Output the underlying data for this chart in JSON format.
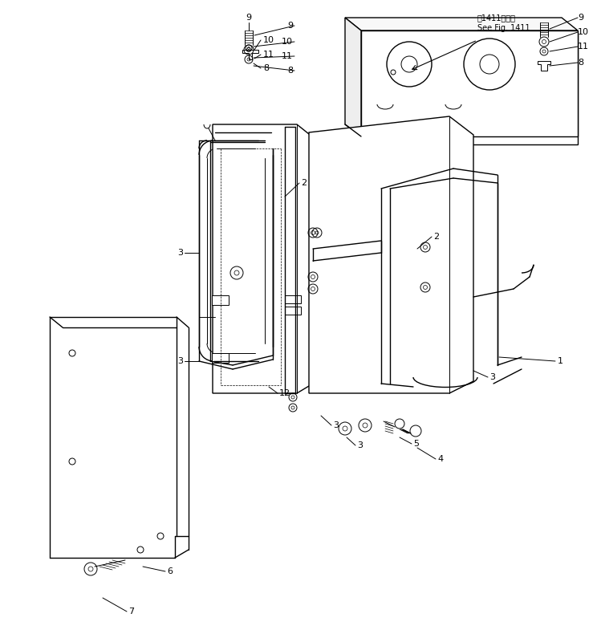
{
  "background_color": "#ffffff",
  "line_color": "#000000",
  "note_japanese": "第1411図参照",
  "note_english": "See Fig. 1411",
  "figsize": [
    7.44,
    7.95
  ],
  "dpi": 100
}
